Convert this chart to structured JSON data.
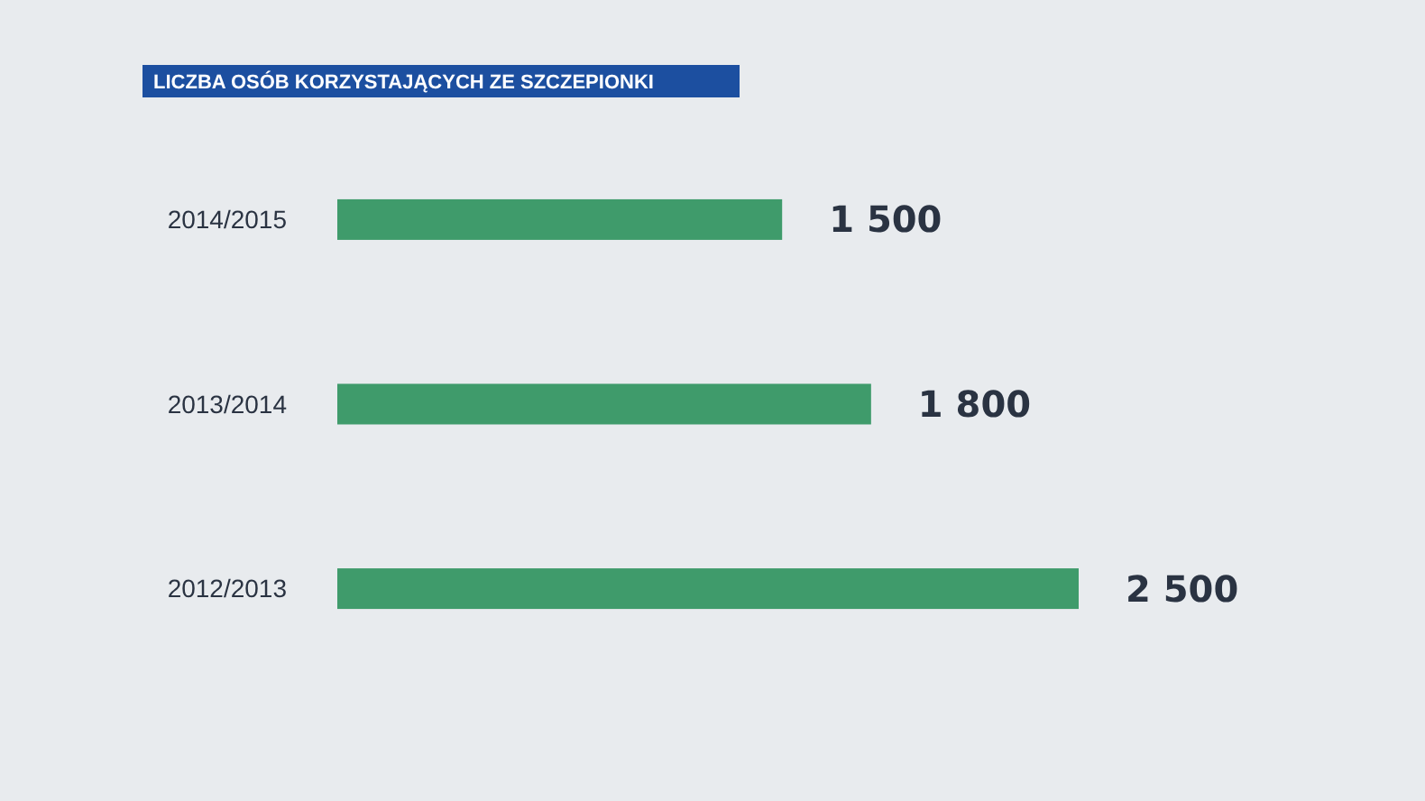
{
  "chart_data": {
    "type": "bar",
    "orientation": "horizontal",
    "title": "LICZBA OSÓB KORZYSTAJĄCYCH ZE SZCZEPIONKI",
    "categories": [
      "2014/2015",
      "2013/2014",
      "2012/2013"
    ],
    "values": [
      1500,
      1800,
      2500
    ],
    "value_labels": [
      "1 500",
      "1 800",
      "2 500"
    ],
    "color": "#3f9b6b"
  }
}
